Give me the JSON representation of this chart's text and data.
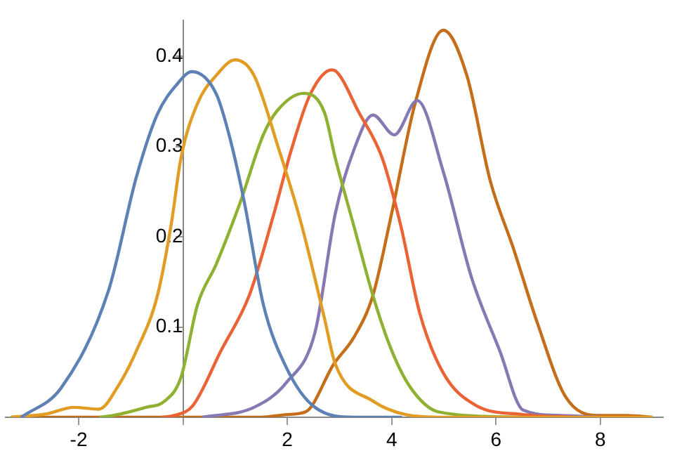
{
  "chart_data": {
    "type": "line",
    "xlim": [
      -3.4,
      9.2
    ],
    "ylim": [
      0,
      0.44
    ],
    "xticks": [
      -2,
      {
        "value": 0,
        "label": null
      },
      2,
      4,
      6,
      8
    ],
    "yticks": [
      {
        "value": 0,
        "label": null
      },
      0.1,
      0.2,
      0.3,
      0.4
    ],
    "grid": false,
    "legend": false,
    "series": [
      {
        "color": "#5e81b5",
        "x": [
          -3.1,
          -2.33,
          -1.43,
          -0.89,
          -0.49,
          -0.13,
          0.17,
          0.64,
          0.91,
          1.18,
          1.54,
          1.99,
          2.53,
          3.3,
          4.2
        ],
        "values": [
          0,
          0.033,
          0.14,
          0.267,
          0.336,
          0.368,
          0.383,
          0.358,
          0.307,
          0.237,
          0.125,
          0.054,
          0.011,
          0,
          0
        ]
      },
      {
        "color": "#e19c24",
        "x": [
          -3.3,
          -2.6,
          -2.1,
          -1.61,
          -1.25,
          -0.89,
          -0.49,
          -0.22,
          -0.04,
          0.28,
          0.64,
          1.0,
          1.36,
          1.81,
          2.26,
          2.71,
          2.92,
          3.64,
          4.27,
          5.0,
          9.0
        ],
        "values": [
          0,
          0.004,
          0.011,
          0.009,
          0.034,
          0.074,
          0.135,
          0.216,
          0.287,
          0.348,
          0.379,
          0.396,
          0.379,
          0.302,
          0.216,
          0.11,
          0.059,
          0.018,
          0.003,
          0,
          0
        ]
      },
      {
        "color": "#8fb131",
        "x": [
          -1.6,
          -1.34,
          -0.71,
          -0.35,
          -0.04,
          0.28,
          0.64,
          1.09,
          1.54,
          1.81,
          2.31,
          2.71,
          2.92,
          3.28,
          3.64,
          4.0,
          4.36,
          4.9,
          6.5
        ],
        "values": [
          0,
          0.002,
          0.011,
          0.018,
          0.044,
          0.125,
          0.17,
          0.237,
          0.313,
          0.34,
          0.359,
          0.338,
          0.287,
          0.211,
          0.135,
          0.074,
          0.033,
          0.006,
          0
        ]
      },
      {
        "color": "#eb6235",
        "x": [
          -0.4,
          -0.17,
          0.19,
          0.73,
          1.27,
          1.72,
          2.08,
          2.44,
          2.85,
          2.92,
          3.37,
          3.82,
          4.18,
          4.54,
          4.99,
          5.62,
          6.52,
          7.5
        ],
        "values": [
          0,
          0.002,
          0.013,
          0.074,
          0.135,
          0.221,
          0.297,
          0.358,
          0.385,
          0.384,
          0.338,
          0.287,
          0.211,
          0.115,
          0.049,
          0.013,
          0.003,
          0
        ]
      },
      {
        "color": "#8778b3",
        "x": [
          0.37,
          1.36,
          1.99,
          2.53,
          2.92,
          3.28,
          3.64,
          4.05,
          4.49,
          4.99,
          5.53,
          6.07,
          6.52,
          7.24,
          8.0
        ],
        "values": [
          0,
          0.011,
          0.039,
          0.094,
          0.226,
          0.297,
          0.335,
          0.313,
          0.351,
          0.272,
          0.155,
          0.074,
          0.008,
          0.002,
          0
        ]
      },
      {
        "color": "#c56e1a",
        "x": [
          -3.3,
          1.5,
          1.99,
          2.35,
          2.89,
          3.28,
          3.64,
          4.0,
          4.45,
          4.99,
          5.44,
          5.89,
          6.34,
          6.79,
          7.33,
          7.96,
          8.5,
          9.0
        ],
        "values": [
          0,
          0,
          0.003,
          0.006,
          0.059,
          0.089,
          0.135,
          0.226,
          0.348,
          0.429,
          0.379,
          0.262,
          0.186,
          0.105,
          0.023,
          0.002,
          0.002,
          0
        ]
      }
    ]
  }
}
